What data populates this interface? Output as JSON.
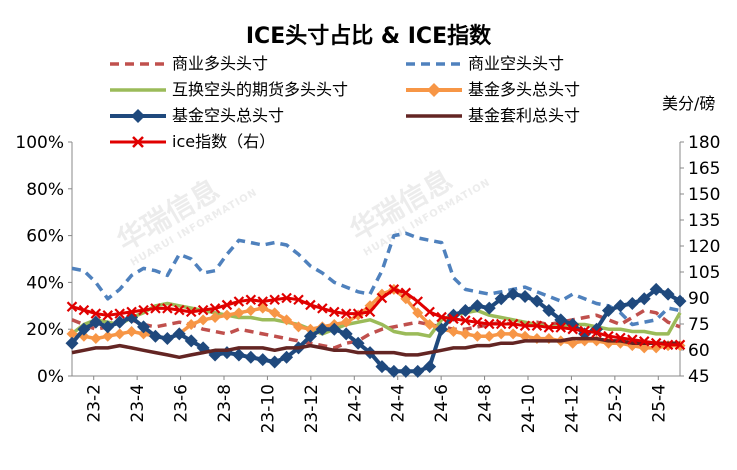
{
  "chart_data": {
    "type": "line",
    "title": "ICE头寸占比 & ICE指数",
    "right_axis_unit": "美分/磅",
    "x_ticks": [
      "23-2",
      "23-4",
      "23-6",
      "23-8",
      "23-10",
      "23-12",
      "24-2",
      "24-4",
      "24-6",
      "24-8",
      "24-10",
      "24-12",
      "25-2",
      "25-4"
    ],
    "left_axis": {
      "ylim": [
        0,
        100
      ],
      "ticks": [
        "0%",
        "20%",
        "40%",
        "60%",
        "80%",
        "100%"
      ]
    },
    "right_axis": {
      "ylim": [
        45,
        180
      ],
      "ticks": [
        "45",
        "60",
        "75",
        "90",
        "105",
        "120",
        "135",
        "150",
        "165",
        "180"
      ]
    },
    "series": [
      {
        "name": "商业多头头寸",
        "axis": "left",
        "color": "#C0504D",
        "style": "dashed",
        "values": [
          24,
          22,
          20,
          21,
          23,
          24,
          22,
          21,
          22,
          23,
          22,
          20,
          19,
          18,
          20,
          19,
          18,
          17,
          16,
          15,
          14,
          13,
          12,
          14,
          15,
          18,
          20,
          21,
          22,
          23,
          22,
          21,
          20,
          20,
          21,
          22,
          23,
          22,
          22,
          23,
          22,
          23,
          24,
          25,
          26,
          24,
          22,
          25,
          28,
          27,
          23,
          21
        ]
      },
      {
        "name": "商业空头头寸",
        "axis": "left",
        "color": "#4F81BD",
        "style": "dashed",
        "values": [
          46,
          45,
          40,
          33,
          37,
          43,
          46,
          45,
          43,
          52,
          50,
          44,
          45,
          52,
          58,
          57,
          56,
          57,
          56,
          52,
          47,
          44,
          40,
          38,
          36,
          35,
          45,
          60,
          61,
          59,
          58,
          57,
          42,
          37,
          36,
          35,
          36,
          37,
          38,
          36,
          34,
          32,
          35,
          33,
          31,
          30,
          27,
          22,
          23,
          24,
          29,
          28
        ]
      },
      {
        "name": "互换空头的期货多头头寸",
        "axis": "left",
        "color": "#9BBB59",
        "style": "solid",
        "values": [
          18,
          22,
          24,
          23,
          22,
          25,
          27,
          30,
          31,
          30,
          29,
          28,
          27,
          26,
          25,
          25,
          24,
          24,
          23,
          22,
          20,
          18,
          20,
          22,
          23,
          24,
          22,
          19,
          18,
          18,
          17,
          24,
          26,
          27,
          28,
          26,
          25,
          24,
          23,
          22,
          21,
          21,
          22,
          22,
          21,
          20,
          20,
          19,
          19,
          18,
          18,
          27
        ]
      },
      {
        "name": "基金多头总头寸",
        "axis": "left",
        "color": "#F79646",
        "style": "marker",
        "values": [
          18,
          17,
          16,
          17,
          18,
          19,
          18,
          17,
          16,
          18,
          22,
          24,
          25,
          26,
          27,
          28,
          29,
          27,
          24,
          21,
          20,
          21,
          22,
          23,
          26,
          30,
          35,
          37,
          33,
          27,
          22,
          20,
          19,
          18,
          17,
          17,
          18,
          18,
          17,
          16,
          16,
          15,
          14,
          15,
          15,
          14,
          14,
          13,
          12,
          12,
          13,
          13
        ]
      },
      {
        "name": "基金空头总头寸",
        "axis": "left",
        "color": "#1F497D",
        "style": "marker",
        "values": [
          14,
          20,
          23,
          21,
          23,
          25,
          21,
          17,
          16,
          18,
          15,
          12,
          9,
          10,
          9,
          8,
          7,
          6,
          8,
          12,
          17,
          20,
          20,
          18,
          14,
          10,
          4,
          2,
          2,
          2,
          4,
          20,
          26,
          28,
          30,
          29,
          33,
          35,
          34,
          32,
          28,
          24,
          22,
          18,
          20,
          28,
          30,
          31,
          33,
          37,
          35,
          32
        ]
      },
      {
        "name": "基金套利总头寸",
        "axis": "left",
        "color": "#632523",
        "style": "solid",
        "values": [
          10,
          11,
          12,
          12,
          13,
          12,
          11,
          10,
          9,
          8,
          9,
          10,
          11,
          11,
          12,
          12,
          12,
          11,
          12,
          12,
          13,
          12,
          11,
          11,
          10,
          10,
          10,
          10,
          9,
          9,
          10,
          11,
          12,
          12,
          13,
          13,
          14,
          14,
          15,
          15,
          15,
          15,
          16,
          16,
          16,
          15,
          15,
          14,
          14,
          14,
          14,
          14
        ]
      },
      {
        "name": "ice指数（右）",
        "axis": "right",
        "color": "#E00000",
        "style": "x-marker",
        "values": [
          85,
          83,
          81,
          80,
          81,
          82,
          83,
          84,
          84,
          83,
          82,
          83,
          84,
          86,
          88,
          89,
          88,
          89,
          90,
          89,
          86,
          84,
          82,
          81,
          81,
          82,
          90,
          95,
          93,
          88,
          82,
          79,
          78,
          77,
          76,
          75,
          75,
          75,
          74,
          74,
          73,
          73,
          72,
          71,
          70,
          68,
          67,
          66,
          65,
          64,
          63,
          63
        ]
      }
    ]
  },
  "watermark": {
    "brand": "华瑞信息",
    "sub": "HUARUI INFORMATION"
  }
}
